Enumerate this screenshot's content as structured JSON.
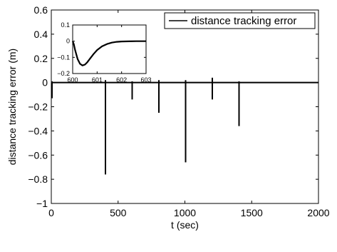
{
  "chart_data": [
    {
      "type": "line",
      "xlabel": "t (sec)",
      "ylabel": "distance tracking error (m)",
      "xlim": [
        0,
        2000
      ],
      "ylim": [
        -1,
        0.6
      ],
      "x_ticks": [
        0,
        500,
        1000,
        1500,
        2000
      ],
      "x_tick_labels": [
        "0",
        "500",
        "1000",
        "1500",
        "2000"
      ],
      "y_ticks": [
        0.6,
        0.4,
        0.2,
        0,
        -0.2,
        -0.4,
        -0.6,
        -0.8,
        -1
      ],
      "y_tick_labels": [
        "0.6",
        "0.4",
        "0.2",
        "0",
        "−0.2",
        "−0.4",
        "−0.6",
        "−0.8",
        "−1"
      ],
      "grid": false,
      "legend_position": "top-right",
      "series": [
        {
          "name": "distance tracking error",
          "color": "#000000",
          "baseline": 0,
          "events": [
            {
              "t": 0,
              "min": -0.13,
              "max": 0.01
            },
            {
              "t": 400,
              "min": -0.76,
              "max": 0.02
            },
            {
              "t": 600,
              "min": -0.14,
              "max": 0.01
            },
            {
              "t": 800,
              "min": -0.25,
              "max": 0.02
            },
            {
              "t": 1000,
              "min": -0.66,
              "max": 0.02
            },
            {
              "t": 1200,
              "min": -0.14,
              "max": 0.04
            },
            {
              "t": 1400,
              "min": -0.36,
              "max": 0.01
            }
          ]
        }
      ]
    },
    {
      "type": "line",
      "role": "inset",
      "xlim": [
        600,
        603
      ],
      "ylim": [
        -0.2,
        0.1
      ],
      "x_ticks": [
        600,
        601,
        602,
        603
      ],
      "x_tick_labels": [
        "600",
        "601",
        "602",
        "603"
      ],
      "y_ticks": [
        0.1,
        0,
        -0.1,
        -0.2
      ],
      "y_tick_labels": [
        "0.1",
        "0",
        "−0.1",
        "−0.2"
      ],
      "series": [
        {
          "color": "#000000",
          "x": [
            600.0,
            600.05,
            600.1,
            600.2,
            600.3,
            600.4,
            600.5,
            600.6,
            600.7,
            600.85,
            601.0,
            601.2,
            601.4,
            601.6,
            601.8,
            602.0,
            602.3,
            602.6,
            603.0
          ],
          "y": [
            0.0,
            -0.02,
            -0.055,
            -0.11,
            -0.14,
            -0.15,
            -0.145,
            -0.13,
            -0.11,
            -0.08,
            -0.055,
            -0.032,
            -0.018,
            -0.009,
            -0.004,
            -0.002,
            -0.001,
            0.0,
            0.0
          ]
        }
      ]
    }
  ]
}
